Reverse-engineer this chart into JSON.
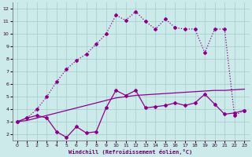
{
  "background_color": "#cdeaea",
  "grid_color": "#a8d0d0",
  "line_color": "#8b008b",
  "xlabel": "Windchill (Refroidissement éolien,°C)",
  "xlim": [
    -0.5,
    23.5
  ],
  "ylim": [
    1.5,
    12.5
  ],
  "xticks": [
    0,
    1,
    2,
    3,
    4,
    5,
    6,
    7,
    8,
    9,
    10,
    11,
    12,
    13,
    14,
    15,
    16,
    17,
    18,
    19,
    20,
    21,
    22,
    23
  ],
  "yticks": [
    2,
    3,
    4,
    5,
    6,
    7,
    8,
    9,
    10,
    11,
    12
  ],
  "series1_x": [
    0,
    1,
    2,
    3,
    4,
    5,
    6,
    7,
    8,
    9,
    10,
    11,
    12,
    13,
    14,
    15,
    16,
    17,
    18,
    19,
    20,
    21,
    22,
    23
  ],
  "series1_y": [
    3.0,
    3.3,
    3.5,
    3.3,
    2.2,
    1.75,
    2.6,
    2.1,
    2.2,
    4.1,
    5.5,
    5.1,
    5.5,
    4.1,
    4.2,
    4.3,
    4.5,
    4.3,
    4.5,
    5.2,
    4.4,
    3.6,
    3.7,
    3.9
  ],
  "series2_x": [
    0,
    1,
    2,
    3,
    4,
    5,
    6,
    7,
    8,
    9,
    10,
    11,
    12,
    13,
    14,
    15,
    16,
    17,
    18,
    19,
    20,
    21,
    22,
    23
  ],
  "series2_y": [
    3.0,
    3.1,
    3.3,
    3.5,
    3.7,
    3.9,
    4.1,
    4.3,
    4.5,
    4.7,
    4.9,
    5.0,
    5.1,
    5.15,
    5.2,
    5.25,
    5.3,
    5.35,
    5.4,
    5.45,
    5.5,
    5.5,
    5.55,
    5.6
  ],
  "series3_x": [
    0,
    1,
    2,
    3,
    4,
    5,
    6,
    7,
    8,
    9,
    10,
    11,
    12,
    13,
    14,
    15,
    16,
    17,
    18,
    19,
    20,
    21,
    22,
    23
  ],
  "series3_y": [
    3.0,
    3.3,
    4.0,
    5.0,
    6.2,
    7.2,
    7.9,
    8.4,
    9.2,
    10.0,
    11.5,
    11.1,
    11.8,
    11.0,
    10.4,
    11.2,
    10.5,
    10.4,
    10.4,
    8.5,
    10.4,
    10.4,
    3.5,
    3.9
  ]
}
